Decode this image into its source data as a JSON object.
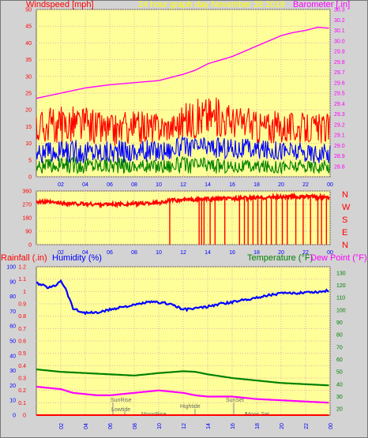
{
  "header": {
    "windspeed_label": "Windspeed [mph]",
    "title": "24 hour graph day   November 28 2019",
    "barometer_label": "Barometer [.in]"
  },
  "compass": [
    "N",
    "W",
    "S",
    "E",
    "N"
  ],
  "lower_header": {
    "rainfall_label": "Rainfall (.in)",
    "humidity_label": "Humidity (%)",
    "temperature_label": "Temperature (°F)",
    "dewpoint_label": "Dew Point (°F)"
  },
  "events": {
    "sunrise": "SunRise",
    "lowtide": "Lowtide",
    "moonrise": "MoonRise",
    "hightide": "Hightide",
    "sunset": "SunSet",
    "moonset": "Moon Set"
  },
  "colors": {
    "plot_bg": "#ffff99",
    "outer_bg": "#d3d3d3",
    "wind_max": "#ff0000",
    "wind_avg": "#0000ff",
    "wind_min": "#008000",
    "barometer": "#ff00ff",
    "direction": "#ff0000",
    "humidity": "#0000ff",
    "temperature": "#008000",
    "dewpoint": "#ff00ff",
    "rainfall": "#ff0000",
    "text_red": "#ff0000",
    "text_yellow": "#ffff00",
    "text_magenta": "#ff00ff",
    "text_blue": "#0000ff",
    "text_green": "#008000"
  },
  "chart_data": [
    {
      "id": "wind-barometer",
      "type": "line",
      "x_tick_labels": [
        "02",
        "04",
        "06",
        "08",
        "10",
        "12",
        "14",
        "16",
        "18",
        "20",
        "22",
        "00"
      ],
      "left_axis": {
        "label": "Windspeed [mph]",
        "ylim": [
          0,
          50
        ],
        "ticks": [
          0,
          5,
          10,
          15,
          20,
          25,
          30,
          35,
          40,
          45,
          50
        ]
      },
      "right_axis": {
        "label": "Barometer [.in]",
        "ylim": [
          28.7,
          30.3
        ],
        "ticks": [
          28.8,
          28.9,
          29.0,
          29.1,
          29.2,
          29.3,
          29.4,
          29.5,
          29.6,
          29.7,
          29.8,
          29.9,
          30.0,
          30.1,
          30.2,
          30.3
        ]
      },
      "grid": true,
      "series": [
        {
          "name": "wind_gust",
          "axis": "left",
          "color": "#ff0000",
          "style": "noisy",
          "band": [
            [
              0,
              10,
              20
            ],
            [
              3,
              10,
              22
            ],
            [
              6,
              9,
              19
            ],
            [
              9,
              10,
              20
            ],
            [
              11,
              11,
              19
            ],
            [
              12,
              11,
              22
            ],
            [
              14,
              12,
              25
            ],
            [
              16,
              12,
              22
            ],
            [
              18,
              10,
              20
            ],
            [
              20,
              10,
              20
            ],
            [
              22,
              10,
              19
            ],
            [
              24,
              10,
              19
            ]
          ]
        },
        {
          "name": "wind_avg",
          "axis": "left",
          "color": "#0000ff",
          "style": "noisy",
          "band": [
            [
              0,
              4,
              10
            ],
            [
              3,
              4,
              11
            ],
            [
              6,
              4,
              11
            ],
            [
              9,
              4,
              11
            ],
            [
              11,
              5,
              11
            ],
            [
              12,
              6,
              12
            ],
            [
              14,
              6,
              12
            ],
            [
              16,
              5,
              12
            ],
            [
              18,
              5,
              11
            ],
            [
              20,
              5,
              11
            ],
            [
              22,
              4,
              10
            ],
            [
              24,
              4,
              10
            ]
          ]
        },
        {
          "name": "wind_min",
          "axis": "left",
          "color": "#008000",
          "style": "noisy",
          "band": [
            [
              0,
              1,
              5
            ],
            [
              3,
              1,
              6
            ],
            [
              6,
              1,
              6
            ],
            [
              9,
              1,
              5
            ],
            [
              12,
              1,
              6
            ],
            [
              14,
              1,
              6
            ],
            [
              16,
              1,
              5
            ],
            [
              18,
              1,
              5
            ],
            [
              20,
              1,
              5
            ],
            [
              22,
              1,
              5
            ],
            [
              24,
              1,
              5
            ]
          ]
        },
        {
          "name": "barometer",
          "axis": "right",
          "color": "#ff00ff",
          "style": "smooth",
          "points": [
            [
              0,
              29.45
            ],
            [
              2,
              29.5
            ],
            [
              4,
              29.55
            ],
            [
              6,
              29.58
            ],
            [
              8,
              29.6
            ],
            [
              10,
              29.62
            ],
            [
              12,
              29.68
            ],
            [
              13,
              29.72
            ],
            [
              14,
              29.78
            ],
            [
              16,
              29.85
            ],
            [
              18,
              29.95
            ],
            [
              20,
              30.05
            ],
            [
              21,
              30.08
            ],
            [
              22,
              30.1
            ],
            [
              23,
              30.13
            ],
            [
              24,
              30.12
            ]
          ]
        }
      ]
    },
    {
      "id": "wind-direction",
      "type": "line",
      "x_tick_labels": [
        "02",
        "04",
        "06",
        "08",
        "10",
        "12",
        "14",
        "16",
        "18",
        "20",
        "22",
        "00"
      ],
      "left_axis": {
        "ylim": [
          0,
          360
        ],
        "ticks": [
          0,
          90,
          180,
          270,
          360
        ]
      },
      "right_labels": [
        "N",
        "W",
        "S",
        "E",
        "N"
      ],
      "series": [
        {
          "name": "direction",
          "color": "#ff0000",
          "style": "direction",
          "points": [
            [
              0,
              290
            ],
            [
              2,
              278
            ],
            [
              4,
              272
            ],
            [
              6,
              270
            ],
            [
              8,
              274
            ],
            [
              10,
              282
            ],
            [
              11,
              295
            ],
            [
              12,
              300
            ],
            [
              14,
              305
            ],
            [
              16,
              310
            ],
            [
              18,
              315
            ],
            [
              20,
              320
            ],
            [
              22,
              322
            ],
            [
              24,
              318
            ]
          ],
          "drops": [
            10.9,
            13.3,
            13.5,
            13.7,
            14.2,
            14.6,
            15.4,
            16.6,
            17.0,
            17.3,
            17.7,
            18.1,
            18.4,
            18.8,
            19.2,
            19.6,
            20.1,
            20.5,
            21.2,
            21.8,
            22.4,
            23.0,
            23.3,
            23.7
          ]
        }
      ]
    },
    {
      "id": "humidity-temperature",
      "type": "line",
      "x_tick_labels": [
        "02",
        "04",
        "06",
        "08",
        "10",
        "12",
        "14",
        "16",
        "18",
        "20",
        "22",
        "00"
      ],
      "rain_axis": {
        "label": "Rainfall (.in)",
        "ylim": [
          0,
          1.2
        ],
        "ticks": [
          0,
          0.1,
          0.2,
          0.3,
          0.4,
          0.5,
          0.6,
          0.7,
          0.8,
          0.9,
          1.0,
          1.1,
          1.2
        ]
      },
      "humidity_axis": {
        "label": "Humidity (%)",
        "ylim": [
          0,
          100
        ],
        "ticks": [
          0,
          10,
          20,
          30,
          40,
          50,
          60,
          70,
          80,
          90,
          100
        ]
      },
      "temperature_axis": {
        "label": "Temperature (°F)",
        "ylim": [
          15,
          135
        ],
        "ticks": [
          20,
          30,
          40,
          50,
          60,
          70,
          80,
          90,
          100,
          110,
          120,
          130
        ]
      },
      "series": [
        {
          "name": "humidity",
          "axis": "humidity",
          "color": "#0000ff",
          "style": "jagged",
          "points": [
            [
              0,
              89
            ],
            [
              1,
              86
            ],
            [
              1.5,
              87
            ],
            [
              2,
              91
            ],
            [
              2.4,
              85
            ],
            [
              3,
              72
            ],
            [
              3.5,
              70
            ],
            [
              4,
              69
            ],
            [
              5,
              69
            ],
            [
              6,
              71
            ],
            [
              7,
              73
            ],
            [
              8,
              74
            ],
            [
              9,
              76
            ],
            [
              10,
              76
            ],
            [
              11,
              75
            ],
            [
              12,
              71
            ],
            [
              13,
              72
            ],
            [
              14,
              73
            ],
            [
              15,
              75
            ],
            [
              16,
              76
            ],
            [
              17,
              78
            ],
            [
              18,
              79
            ],
            [
              19,
              81
            ],
            [
              20,
              82
            ],
            [
              21,
              82
            ],
            [
              22,
              83
            ],
            [
              23,
              83
            ],
            [
              24,
              84
            ]
          ]
        },
        {
          "name": "temperature",
          "axis": "temperature",
          "color": "#008000",
          "style": "smooth",
          "points": [
            [
              0,
              52
            ],
            [
              2,
              50
            ],
            [
              4,
              49
            ],
            [
              6,
              48
            ],
            [
              8,
              47
            ],
            [
              10,
              49
            ],
            [
              12,
              50.5
            ],
            [
              13,
              50
            ],
            [
              14,
              48
            ],
            [
              16,
              45
            ],
            [
              18,
              43
            ],
            [
              20,
              41
            ],
            [
              22,
              40
            ],
            [
              24,
              39
            ]
          ]
        },
        {
          "name": "dewpoint",
          "axis": "temperature",
          "color": "#ff00ff",
          "style": "smooth",
          "points": [
            [
              0,
              38
            ],
            [
              1,
              37
            ],
            [
              2,
              36
            ],
            [
              3,
              33
            ],
            [
              4,
              32
            ],
            [
              5,
              31
            ],
            [
              6,
              31
            ],
            [
              7,
              32
            ],
            [
              8,
              33
            ],
            [
              9,
              34
            ],
            [
              10,
              35
            ],
            [
              11,
              34
            ],
            [
              12,
              33
            ],
            [
              13,
              31
            ],
            [
              14,
              30
            ],
            [
              16,
              30
            ],
            [
              18,
              28
            ],
            [
              20,
              27
            ],
            [
              22,
              26
            ],
            [
              24,
              25
            ]
          ]
        },
        {
          "name": "rainfall",
          "axis": "rain",
          "color": "#ff0000",
          "style": "flat",
          "points": [
            [
              0,
              0
            ],
            [
              24,
              0
            ]
          ]
        }
      ]
    }
  ]
}
